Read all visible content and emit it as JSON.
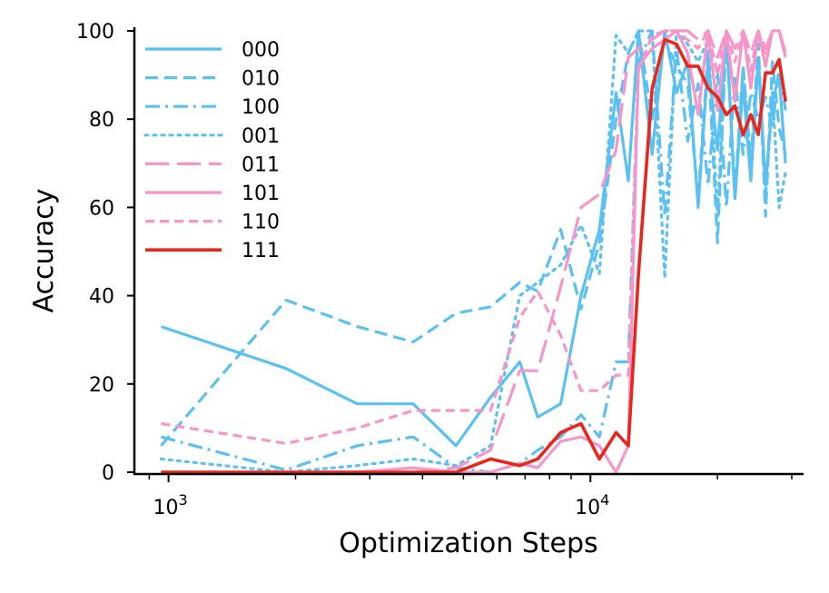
{
  "chart_data": {
    "type": "line",
    "title": "",
    "xlabel": "Optimization Steps",
    "ylabel": "Accuracy",
    "xscale": "log",
    "xlim": [
      830,
      32000
    ],
    "ylim": [
      0,
      100
    ],
    "yticks": [
      0,
      20,
      40,
      60,
      80,
      100
    ],
    "xticks_major": [
      1000,
      10000
    ],
    "xtick_labels": [
      {
        "base": "10",
        "exp": "3"
      },
      {
        "base": "10",
        "exp": "4"
      }
    ],
    "grid": false,
    "legend_position": "top-left",
    "colors": {
      "blue": "#5BC0F2",
      "pink": "#F696C8",
      "red": "#E8261C"
    },
    "series": [
      {
        "name": "000",
        "color": "#5BC0F2",
        "dash": "solid",
        "points": [
          [
            960,
            33
          ],
          [
            1900,
            23.5
          ],
          [
            2800,
            15.5
          ],
          [
            3800,
            15.5
          ],
          [
            4800,
            6
          ],
          [
            5800,
            17
          ],
          [
            6800,
            25
          ],
          [
            7500,
            12.5
          ],
          [
            8500,
            15.5
          ],
          [
            9500,
            40
          ],
          [
            10500,
            55
          ],
          [
            11500,
            86
          ],
          [
            12300,
            66
          ],
          [
            13000,
            100
          ],
          [
            14000,
            72
          ],
          [
            15000,
            100
          ],
          [
            16000,
            86
          ],
          [
            17000,
            93
          ],
          [
            18000,
            60
          ],
          [
            19000,
            93
          ],
          [
            20000,
            73
          ],
          [
            21000,
            100
          ],
          [
            22000,
            62
          ],
          [
            23000,
            88
          ],
          [
            24000,
            66
          ],
          [
            25000,
            94
          ],
          [
            26000,
            65
          ],
          [
            27000,
            84
          ],
          [
            28000,
            90
          ],
          [
            29000,
            70
          ]
        ]
      },
      {
        "name": "010",
        "color": "#5BC0F2",
        "dash": "dashed",
        "points": [
          [
            960,
            6
          ],
          [
            1900,
            39
          ],
          [
            2800,
            33
          ],
          [
            3800,
            29.5
          ],
          [
            4800,
            36
          ],
          [
            5800,
            37.5
          ],
          [
            6800,
            43
          ],
          [
            7500,
            41
          ],
          [
            8500,
            55
          ],
          [
            9500,
            37
          ],
          [
            10500,
            52
          ],
          [
            11500,
            80
          ],
          [
            12300,
            95
          ],
          [
            13000,
            100
          ],
          [
            14000,
            80
          ],
          [
            15000,
            98
          ],
          [
            16000,
            92
          ],
          [
            17000,
            88
          ],
          [
            18000,
            62
          ],
          [
            19000,
            95
          ],
          [
            20000,
            52
          ],
          [
            21000,
            100
          ],
          [
            22000,
            63
          ],
          [
            23000,
            92
          ],
          [
            24000,
            70
          ],
          [
            25000,
            97
          ],
          [
            26000,
            58
          ],
          [
            27000,
            93
          ],
          [
            28000,
            78
          ],
          [
            29000,
            72
          ]
        ]
      },
      {
        "name": "100",
        "color": "#5BC0F2",
        "dash": "dashdot",
        "points": [
          [
            960,
            8
          ],
          [
            1900,
            0.5
          ],
          [
            2800,
            6
          ],
          [
            3800,
            8
          ],
          [
            4800,
            1
          ],
          [
            5800,
            0
          ],
          [
            6800,
            2
          ],
          [
            7500,
            5
          ],
          [
            8500,
            8
          ],
          [
            9500,
            13
          ],
          [
            10500,
            8
          ],
          [
            11500,
            25
          ],
          [
            12300,
            25
          ],
          [
            13000,
            93
          ],
          [
            14000,
            100
          ],
          [
            15000,
            58
          ],
          [
            16000,
            96
          ],
          [
            17000,
            75
          ],
          [
            18000,
            88
          ],
          [
            19000,
            65
          ],
          [
            20000,
            91
          ],
          [
            21000,
            60
          ],
          [
            22000,
            90
          ],
          [
            23000,
            72
          ],
          [
            24000,
            86
          ],
          [
            25000,
            80
          ],
          [
            26000,
            85
          ],
          [
            27000,
            78
          ],
          [
            28000,
            92
          ],
          [
            29000,
            82
          ]
        ]
      },
      {
        "name": "001",
        "color": "#5BC0F2",
        "dash": "dotted",
        "points": [
          [
            960,
            3
          ],
          [
            1900,
            0
          ],
          [
            2800,
            1.5
          ],
          [
            3800,
            3
          ],
          [
            4800,
            1.5
          ],
          [
            5800,
            6
          ],
          [
            6800,
            40
          ],
          [
            7500,
            43
          ],
          [
            8500,
            47
          ],
          [
            9500,
            56
          ],
          [
            10500,
            45
          ],
          [
            11500,
            99
          ],
          [
            12300,
            95
          ],
          [
            13000,
            100
          ],
          [
            14000,
            100
          ],
          [
            15000,
            44
          ],
          [
            16000,
            100
          ],
          [
            17000,
            97
          ],
          [
            18000,
            93
          ],
          [
            19000,
            98
          ],
          [
            20000,
            58
          ],
          [
            21000,
            100
          ],
          [
            22000,
            62
          ],
          [
            23000,
            92
          ],
          [
            24000,
            69
          ],
          [
            25000,
            94
          ],
          [
            26000,
            62
          ],
          [
            27000,
            86
          ],
          [
            28000,
            60
          ],
          [
            29000,
            68
          ]
        ]
      },
      {
        "name": "011",
        "color": "#F696C8",
        "dash": "longdash",
        "points": [
          [
            960,
            0
          ],
          [
            1900,
            0
          ],
          [
            2800,
            0
          ],
          [
            3800,
            0
          ],
          [
            4800,
            1
          ],
          [
            5800,
            5
          ],
          [
            6800,
            23
          ],
          [
            7500,
            23
          ],
          [
            8500,
            42
          ],
          [
            9500,
            60
          ],
          [
            10500,
            63
          ],
          [
            11500,
            73
          ],
          [
            12300,
            94
          ],
          [
            13000,
            96
          ],
          [
            14000,
            98
          ],
          [
            15000,
            100
          ],
          [
            16000,
            100
          ],
          [
            17000,
            100
          ],
          [
            18000,
            98
          ],
          [
            19000,
            100
          ],
          [
            20000,
            94
          ],
          [
            21000,
            100
          ],
          [
            22000,
            96
          ],
          [
            23000,
            100
          ],
          [
            24000,
            95
          ],
          [
            25000,
            100
          ],
          [
            26000,
            96
          ],
          [
            27000,
            100
          ],
          [
            28000,
            100
          ],
          [
            29000,
            95
          ]
        ]
      },
      {
        "name": "101",
        "color": "#F696C8",
        "dash": "solid",
        "points": [
          [
            960,
            0
          ],
          [
            1900,
            0
          ],
          [
            2800,
            0
          ],
          [
            3800,
            1
          ],
          [
            4800,
            0
          ],
          [
            5800,
            0
          ],
          [
            6800,
            2
          ],
          [
            7500,
            1
          ],
          [
            8500,
            7
          ],
          [
            9500,
            8
          ],
          [
            10500,
            6
          ],
          [
            11500,
            0
          ],
          [
            12300,
            6
          ],
          [
            13000,
            92
          ],
          [
            14000,
            96
          ],
          [
            15000,
            98
          ],
          [
            16000,
            100
          ],
          [
            17000,
            95
          ],
          [
            18000,
            81
          ],
          [
            19000,
            100
          ],
          [
            20000,
            82
          ],
          [
            21000,
            100
          ],
          [
            22000,
            84
          ],
          [
            23000,
            100
          ],
          [
            24000,
            87
          ],
          [
            25000,
            100
          ],
          [
            26000,
            92
          ],
          [
            27000,
            100
          ],
          [
            28000,
            100
          ],
          [
            29000,
            94
          ]
        ]
      },
      {
        "name": "110",
        "color": "#F696C8",
        "dash": "shortdash",
        "points": [
          [
            960,
            11
          ],
          [
            1900,
            6.5
          ],
          [
            2800,
            10
          ],
          [
            3800,
            14
          ],
          [
            4800,
            14
          ],
          [
            5800,
            14
          ],
          [
            6800,
            35
          ],
          [
            7500,
            41
          ],
          [
            8500,
            31
          ],
          [
            9500,
            18.5
          ],
          [
            10500,
            18.5
          ],
          [
            11500,
            22
          ],
          [
            12300,
            22
          ],
          [
            13000,
            91
          ],
          [
            14000,
            99
          ],
          [
            15000,
            100
          ],
          [
            16000,
            100
          ],
          [
            17000,
            98
          ],
          [
            18000,
            96
          ],
          [
            19000,
            100
          ],
          [
            20000,
            90
          ],
          [
            21000,
            100
          ],
          [
            22000,
            93
          ],
          [
            23000,
            100
          ],
          [
            24000,
            91
          ],
          [
            25000,
            100
          ],
          [
            26000,
            94
          ],
          [
            27000,
            100
          ],
          [
            28000,
            100
          ],
          [
            29000,
            95
          ]
        ]
      },
      {
        "name": "111",
        "color": "#E8261C",
        "dash": "solid",
        "bold": true,
        "points": [
          [
            960,
            0
          ],
          [
            1900,
            0
          ],
          [
            2800,
            0
          ],
          [
            3800,
            0
          ],
          [
            4800,
            0
          ],
          [
            5800,
            3
          ],
          [
            6800,
            1.5
          ],
          [
            7500,
            3
          ],
          [
            8500,
            9
          ],
          [
            9500,
            11
          ],
          [
            10500,
            3
          ],
          [
            11500,
            9
          ],
          [
            12300,
            6
          ],
          [
            13000,
            45
          ],
          [
            14000,
            87
          ],
          [
            15000,
            98
          ],
          [
            16000,
            97
          ],
          [
            17000,
            92
          ],
          [
            18000,
            92
          ],
          [
            19000,
            87
          ],
          [
            20000,
            85
          ],
          [
            21000,
            81
          ],
          [
            22000,
            83
          ],
          [
            23000,
            76.5
          ],
          [
            24000,
            81
          ],
          [
            25000,
            76.5
          ],
          [
            26000,
            90.5
          ],
          [
            27000,
            90.5
          ],
          [
            28000,
            93.5
          ],
          [
            29000,
            84
          ]
        ]
      }
    ]
  }
}
